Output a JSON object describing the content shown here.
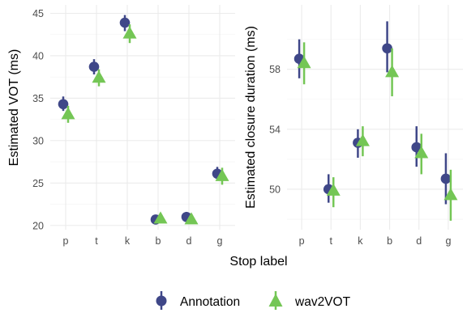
{
  "chart_data": [
    {
      "type": "scatter",
      "subtype": "pointrange",
      "categories": [
        "p",
        "t",
        "k",
        "b",
        "d",
        "g"
      ],
      "ylabel": "Estimated VOT (ms)",
      "ylim": [
        19.5,
        46
      ],
      "yticks": [
        20,
        25,
        30,
        35,
        40,
        45
      ],
      "grid": true,
      "series": [
        {
          "name": "Annotation",
          "color": "#3F4788",
          "marker": "circle",
          "values": [
            34.3,
            38.7,
            43.9,
            20.7,
            21.0,
            26.1
          ],
          "lower": [
            33.5,
            37.8,
            42.9,
            20.2,
            20.5,
            25.4
          ],
          "upper": [
            35.2,
            39.6,
            44.8,
            21.2,
            21.6,
            26.9
          ]
        },
        {
          "name": "wav2VOT",
          "color": "#74C655",
          "marker": "triangle",
          "values": [
            33.1,
            37.4,
            42.6,
            20.8,
            20.7,
            25.8
          ],
          "lower": [
            32.1,
            36.4,
            41.5,
            20.3,
            20.2,
            24.8
          ],
          "upper": [
            34.1,
            38.4,
            43.7,
            21.3,
            21.2,
            26.8
          ]
        }
      ]
    },
    {
      "type": "scatter",
      "subtype": "pointrange",
      "categories": [
        "p",
        "t",
        "k",
        "b",
        "d",
        "g"
      ],
      "ylabel": "Estimated closure duration (ms)",
      "ylim": [
        47.3,
        62.3
      ],
      "yticks": [
        50,
        54,
        58
      ],
      "grid": true,
      "series": [
        {
          "name": "Annotation",
          "color": "#3F4788",
          "marker": "circle",
          "values": [
            58.7,
            50.0,
            53.1,
            59.4,
            52.8,
            50.7
          ],
          "lower": [
            57.4,
            49.1,
            52.1,
            57.8,
            51.5,
            49.0
          ],
          "upper": [
            60.0,
            51.0,
            54.0,
            61.2,
            54.2,
            52.4
          ]
        },
        {
          "name": "wav2VOT",
          "color": "#74C655",
          "marker": "triangle",
          "values": [
            58.4,
            49.9,
            53.2,
            57.8,
            52.4,
            49.6
          ],
          "lower": [
            57.0,
            48.8,
            52.2,
            56.2,
            51.0,
            47.9
          ],
          "upper": [
            59.8,
            50.8,
            54.2,
            59.4,
            53.7,
            51.3
          ]
        }
      ]
    }
  ],
  "xlabel": "Stop label",
  "legend": {
    "position": "bottom",
    "items": [
      "Annotation",
      "wav2VOT"
    ]
  }
}
